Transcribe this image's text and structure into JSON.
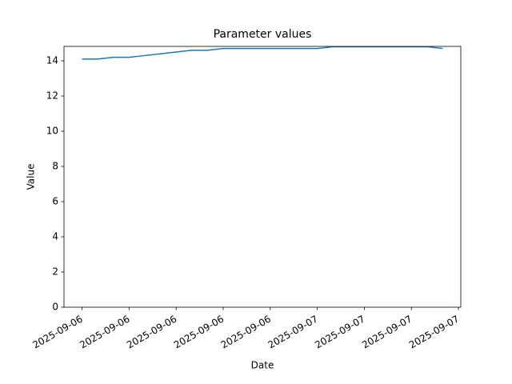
{
  "chart_data": {
    "type": "line",
    "title": "Parameter values",
    "x_label": "Date",
    "y_label": "Value",
    "x": [
      0,
      1,
      2,
      3,
      4,
      5,
      6,
      7,
      8,
      9,
      10,
      11,
      12,
      13,
      14,
      15,
      16,
      17,
      18,
      19,
      20,
      21,
      22,
      23
    ],
    "series": [
      {
        "name": "Value",
        "color": "#1f77b4",
        "values": [
          14.1,
          14.1,
          14.2,
          14.2,
          14.3,
          14.4,
          14.5,
          14.6,
          14.6,
          14.7,
          14.7,
          14.7,
          14.7,
          14.7,
          14.7,
          14.7,
          14.8,
          14.8,
          14.8,
          14.8,
          14.8,
          14.8,
          14.8,
          14.7
        ]
      }
    ],
    "xlim": [
      -1.15,
      24.15
    ],
    "xticks": [
      {
        "value": 0,
        "label": "2025-09-06"
      },
      {
        "value": 3,
        "label": "2025-09-06"
      },
      {
        "value": 6,
        "label": "2025-09-06"
      },
      {
        "value": 9,
        "label": "2025-09-06"
      },
      {
        "value": 12,
        "label": "2025-09-06"
      },
      {
        "value": 15,
        "label": "2025-09-07"
      },
      {
        "value": 18,
        "label": "2025-09-07"
      },
      {
        "value": 21,
        "label": "2025-09-07"
      },
      {
        "value": 24,
        "label": "2025-09-07"
      }
    ],
    "ylim": [
      0,
      14.82
    ],
    "yticks": [
      0,
      2,
      4,
      6,
      8,
      10,
      12,
      14
    ],
    "grid": false
  }
}
